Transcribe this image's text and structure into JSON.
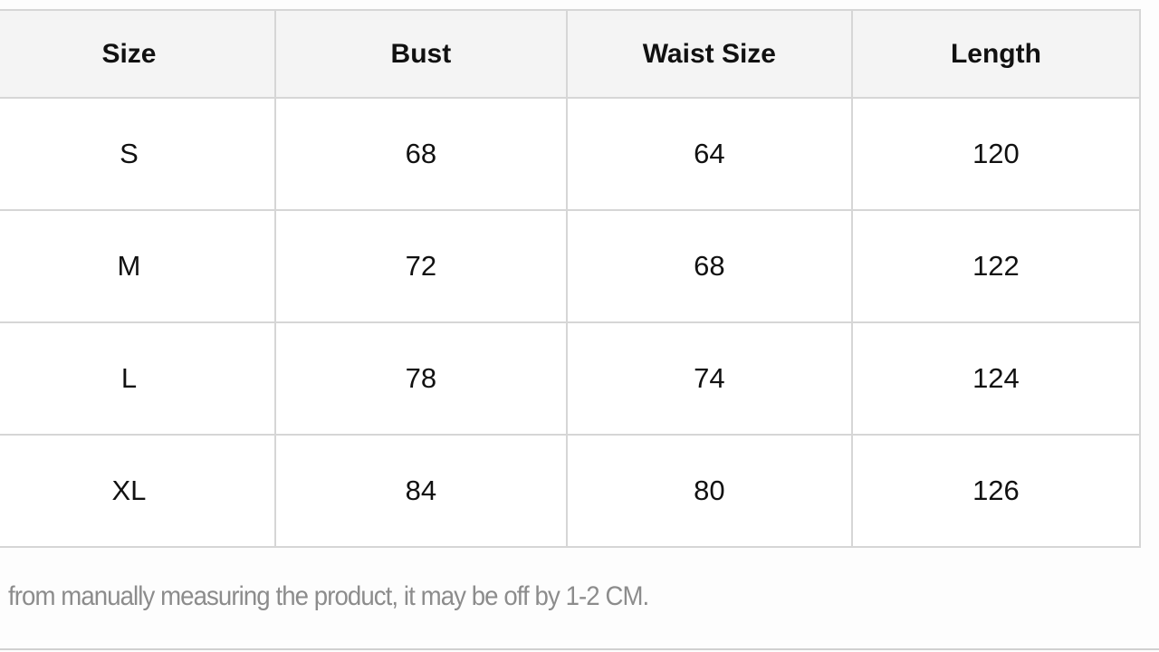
{
  "table": {
    "headers": [
      "Size",
      "Bust",
      "Waist Size",
      "Length"
    ],
    "rows": [
      [
        "S",
        "68",
        "64",
        "120"
      ],
      [
        "M",
        "72",
        "68",
        "122"
      ],
      [
        "L",
        "78",
        "74",
        "124"
      ],
      [
        "XL",
        "84",
        "80",
        "126"
      ]
    ]
  },
  "note": "from manually measuring the product, it may be off by 1-2 CM."
}
